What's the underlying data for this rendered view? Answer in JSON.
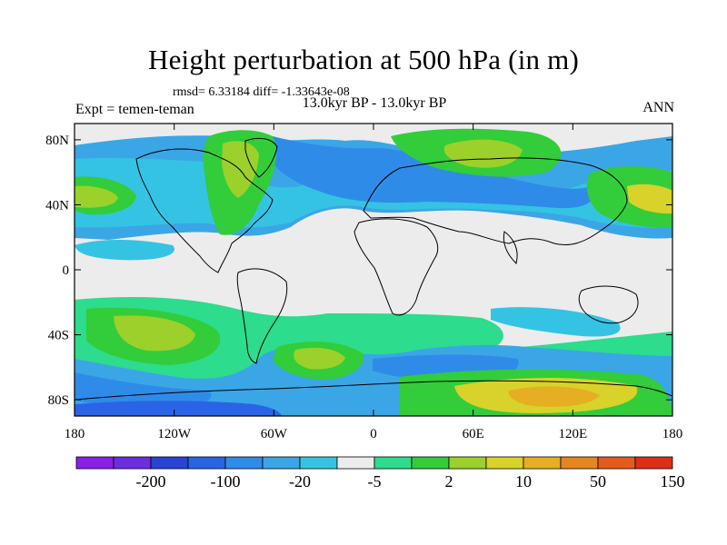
{
  "chart_data": {
    "type": "heatmap",
    "title": "Height perturbation at 500 hPa (in m)",
    "stats": "rmsd= 6.33184 diff= -1.33643e-08",
    "subtitle": "13.0kyr BP - 13.0kyr BP",
    "left_label": "Expt = temen-teman",
    "right_label": "ANN",
    "x_ticks": [
      "180",
      "120W",
      "60W",
      "0",
      "60E",
      "120E",
      "180"
    ],
    "y_ticks": [
      "80N",
      "40N",
      "0",
      "40S",
      "80S"
    ],
    "xlim": [
      -180,
      180
    ],
    "ylim": [
      -90,
      90
    ],
    "colorbar": {
      "labels": [
        "-200",
        "-100",
        "-20",
        "-5",
        "2",
        "10",
        "50",
        "150"
      ],
      "colors": [
        "#8a1fe8",
        "#6a2ee0",
        "#2844d4",
        "#2a64e6",
        "#2f8be8",
        "#3aa6e6",
        "#35c3e4",
        "#ececec",
        "#2ddc8c",
        "#33cc3a",
        "#9bd12a",
        "#d8d22a",
        "#e6ae22",
        "#e6861f",
        "#e45a1c",
        "#de2e17"
      ]
    },
    "colors": {
      "land_fill": "#ececec",
      "coastline": "#000000"
    }
  }
}
